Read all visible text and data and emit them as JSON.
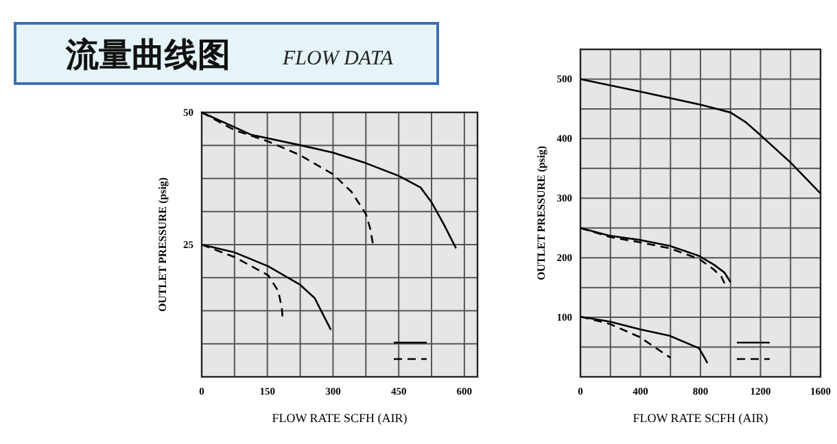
{
  "chart_data": [
    {
      "type": "line",
      "title": "流量曲线图",
      "subtitle": "FLOW DATA",
      "xlabel": "FLOW RATE SCFH (AIR)",
      "ylabel": "OUTLET PRESSURE (psig)",
      "xlim": [
        0,
        630
      ],
      "ylim": [
        0,
        50
      ],
      "xticks": [
        0,
        {
          "value": 75,
          "label": null
        },
        150,
        {
          "value": 225,
          "label": null
        },
        300,
        {
          "value": 375,
          "label": null
        },
        450,
        {
          "value": 525,
          "label": null
        },
        600
      ],
      "yticks": [
        {
          "value": 6.25,
          "label": null
        },
        {
          "value": 12.5,
          "label": null
        },
        {
          "value": 18.75,
          "label": null
        },
        25,
        {
          "value": 31.25,
          "label": null
        },
        {
          "value": 37.5,
          "label": null
        },
        {
          "value": 43.75,
          "label": null
        },
        50
      ],
      "grid": true,
      "series": [
        {
          "color": "#000000",
          "line_style": "solid",
          "x": [
            0,
            112,
            225,
            300,
            375,
            450,
            500,
            525,
            552,
            581
          ],
          "values": [
            50,
            45.8,
            43.8,
            42.4,
            40.4,
            38,
            35.8,
            33,
            29,
            24.3
          ]
        },
        {
          "color": "#000000",
          "line_style": "dashed",
          "x": [
            0,
            76,
            152,
            225,
            300,
            342,
            375,
            385,
            392
          ],
          "values": [
            50,
            46.6,
            44.5,
            41.9,
            38.3,
            35,
            30.8,
            28,
            24.7
          ]
        },
        {
          "color": "#000000",
          "line_style": "solid",
          "x": [
            0,
            76,
            152,
            225,
            258,
            295
          ],
          "values": [
            25,
            23.5,
            20.9,
            17.4,
            14.9,
            8.9
          ]
        },
        {
          "color": "#000000",
          "line_style": "dashed",
          "x": [
            0,
            76,
            152,
            175,
            183,
            185
          ],
          "values": [
            25,
            22.6,
            19.2,
            16.2,
            13,
            11
          ]
        }
      ]
    },
    {
      "type": "line",
      "xlabel": "FLOW RATE SCFH (AIR)",
      "ylabel": "OUTLET PRESSURE (psig)",
      "xlim": [
        0,
        1600
      ],
      "ylim": [
        0,
        550
      ],
      "xticks": [
        0,
        {
          "value": 200,
          "label": null
        },
        400,
        {
          "value": 600,
          "label": null
        },
        800,
        {
          "value": 1000,
          "label": null
        },
        1200,
        {
          "value": 1400,
          "label": null
        },
        1600
      ],
      "yticks": [
        {
          "value": 50,
          "label": null
        },
        100,
        {
          "value": 150,
          "label": null
        },
        200,
        {
          "value": 250,
          "label": null
        },
        300,
        {
          "value": 350,
          "label": null
        },
        400,
        {
          "value": 450,
          "label": null
        },
        500
      ],
      "grid": true,
      "series": [
        {
          "color": "#000000",
          "line_style": "solid",
          "x": [
            0,
            400,
            800,
            1000,
            1100,
            1200,
            1400,
            1600
          ],
          "values": [
            500,
            479,
            457,
            444,
            428,
            406,
            360,
            308
          ]
        },
        {
          "color": "#000000",
          "line_style": "solid",
          "x": [
            0,
            194,
            394,
            594,
            791,
            892,
            960,
            1000
          ],
          "values": [
            250,
            237,
            230,
            220,
            203,
            188,
            175,
            159
          ]
        },
        {
          "color": "#000000",
          "line_style": "dashed",
          "x": [
            0,
            194,
            394,
            594,
            791,
            880,
            940,
            960
          ],
          "values": [
            250,
            235,
            226,
            216,
            198,
            182,
            168,
            157
          ]
        },
        {
          "color": "#000000",
          "line_style": "solid",
          "x": [
            0,
            194,
            394,
            594,
            791,
            830,
            846
          ],
          "values": [
            101,
            93,
            80,
            69,
            48,
            31,
            23
          ]
        },
        {
          "color": "#000000",
          "line_style": "dashed",
          "x": [
            0,
            194,
            394,
            600
          ],
          "values": [
            101,
            89,
            67,
            32
          ]
        }
      ]
    }
  ]
}
